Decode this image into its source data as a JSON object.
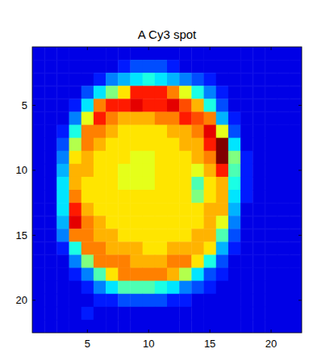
{
  "chart_data": {
    "type": "heatmap",
    "title": "A Cy3 spot",
    "x": [
      1,
      2,
      3,
      4,
      5,
      6,
      7,
      8,
      9,
      10,
      11,
      12,
      13,
      14,
      15,
      16,
      17,
      18,
      19,
      20,
      21,
      22
    ],
    "y": [
      1,
      2,
      3,
      4,
      5,
      6,
      7,
      8,
      9,
      10,
      11,
      12,
      13,
      14,
      15,
      16,
      17,
      18,
      19,
      20,
      21,
      22
    ],
    "xlim": [
      0.5,
      22.5
    ],
    "ylim": [
      0.5,
      22.5
    ],
    "xticks": [
      5,
      10,
      15,
      20
    ],
    "yticks": [
      5,
      10,
      15,
      20
    ],
    "zlim": [
      0,
      10
    ],
    "values": [
      [
        1,
        1,
        1,
        1,
        1,
        1,
        1,
        1,
        1,
        1,
        1,
        1,
        1,
        1,
        1,
        1,
        1,
        1,
        1,
        1,
        1,
        1
      ],
      [
        1,
        1,
        1,
        1,
        1,
        1,
        1,
        1.5,
        2,
        2,
        2,
        1.5,
        1,
        1,
        1,
        1,
        1,
        1,
        1,
        1,
        1,
        1
      ],
      [
        1,
        1,
        1,
        1,
        1,
        1.5,
        2.5,
        3,
        3.5,
        4,
        3.5,
        3,
        2.5,
        2,
        1.5,
        1,
        1,
        1,
        1,
        1,
        1,
        1
      ],
      [
        1,
        1,
        1,
        1,
        2,
        3.5,
        5,
        6.5,
        8.5,
        8.5,
        8.5,
        7.5,
        6,
        4,
        2.5,
        1.5,
        1,
        1,
        1,
        1,
        1,
        1
      ],
      [
        1,
        1,
        1,
        1.5,
        3.5,
        7.5,
        8.5,
        8.5,
        9,
        8.5,
        8.5,
        9,
        8,
        7,
        4,
        2,
        1,
        1,
        1,
        1,
        1,
        1
      ],
      [
        1,
        1,
        1,
        2.5,
        6,
        8.5,
        7.5,
        7,
        7,
        7,
        7.5,
        7.5,
        8.5,
        8,
        7.5,
        3,
        1.5,
        1,
        1,
        1,
        1,
        1
      ],
      [
        1,
        1,
        1.5,
        4,
        7.5,
        7.5,
        7,
        6.5,
        6.5,
        6.5,
        6.5,
        7,
        7,
        7.5,
        9,
        6,
        2,
        1,
        1,
        1,
        1,
        1
      ],
      [
        1,
        1,
        2,
        5.5,
        7.5,
        7,
        6.5,
        6.5,
        6.5,
        6.5,
        6.5,
        6.5,
        7,
        7,
        8.5,
        10,
        3.5,
        1,
        1,
        1,
        1,
        1
      ],
      [
        1,
        1,
        2.5,
        6.5,
        7,
        6.5,
        6.5,
        6.5,
        6,
        6,
        6.5,
        6.5,
        6.5,
        7,
        7.5,
        10,
        5,
        1.5,
        1,
        1,
        1,
        1
      ],
      [
        1,
        1,
        3,
        7,
        7,
        6.5,
        6.5,
        6,
        6,
        6,
        6.5,
        6.5,
        6.5,
        6,
        7,
        8.5,
        4.5,
        1.5,
        1,
        1,
        1,
        1
      ],
      [
        1,
        1,
        3.5,
        7,
        6.5,
        6.5,
        6.5,
        6,
        6,
        6,
        6.5,
        6.5,
        6.5,
        4.5,
        6.5,
        7,
        4,
        1.5,
        1,
        1,
        1,
        1
      ],
      [
        1,
        1,
        3.5,
        7.5,
        6.5,
        6.5,
        6.5,
        6.5,
        6.5,
        6.5,
        6.5,
        6.5,
        6.5,
        5,
        6.5,
        7,
        3.5,
        1.5,
        1,
        1,
        1,
        1
      ],
      [
        1,
        1,
        3.5,
        8.5,
        7,
        6.5,
        6.5,
        6.5,
        6.5,
        6.5,
        6.5,
        6.5,
        6.5,
        6.5,
        7,
        7,
        3,
        1,
        1,
        1,
        1,
        1
      ],
      [
        1,
        1,
        3,
        9,
        7.5,
        7,
        6.5,
        6.5,
        6.5,
        6.5,
        6.5,
        6.5,
        6.5,
        6.5,
        7,
        6,
        2.5,
        1,
        1,
        1,
        1,
        1
      ],
      [
        1,
        1,
        2.5,
        7.5,
        7.5,
        7,
        7,
        6.5,
        6.5,
        6.5,
        6.5,
        6.5,
        6.5,
        7,
        7,
        4.5,
        2,
        1,
        1,
        1,
        1,
        1
      ],
      [
        1,
        1,
        1.5,
        4,
        7.5,
        7.5,
        7,
        7,
        7,
        6.5,
        6.5,
        7,
        7,
        7,
        6.5,
        3,
        1.5,
        1,
        1,
        1,
        1,
        1
      ],
      [
        1,
        1,
        1,
        2.5,
        5,
        7.5,
        7.5,
        7.5,
        7,
        7,
        7,
        7.5,
        7.5,
        6.5,
        4,
        2,
        1,
        1,
        1,
        1,
        1,
        1
      ],
      [
        1,
        1,
        1,
        1.5,
        2.5,
        4.5,
        6.5,
        7.5,
        7.5,
        7.5,
        7.5,
        7,
        5.5,
        3.5,
        2,
        1.5,
        1,
        1,
        1,
        1,
        1,
        1
      ],
      [
        1,
        1,
        1,
        1,
        1.5,
        2.5,
        3.5,
        4.5,
        4.5,
        4.5,
        4,
        3.5,
        2.5,
        2,
        1.5,
        1,
        1,
        1,
        1,
        1,
        1,
        1
      ],
      [
        1,
        1,
        1,
        1,
        1,
        1.5,
        1.5,
        2,
        2,
        2,
        2,
        1.5,
        1.5,
        1,
        1,
        1,
        1,
        1,
        1,
        1,
        1,
        1
      ],
      [
        1,
        1,
        1,
        1,
        1.5,
        1,
        1,
        1,
        1,
        1,
        1,
        1,
        1,
        1,
        1,
        1,
        1,
        1,
        1,
        1,
        1,
        1
      ],
      [
        1,
        1,
        1,
        1,
        1,
        1,
        1,
        1,
        1,
        1,
        1,
        1,
        1,
        1,
        1,
        1,
        1,
        1,
        1,
        1,
        1,
        1
      ]
    ]
  }
}
